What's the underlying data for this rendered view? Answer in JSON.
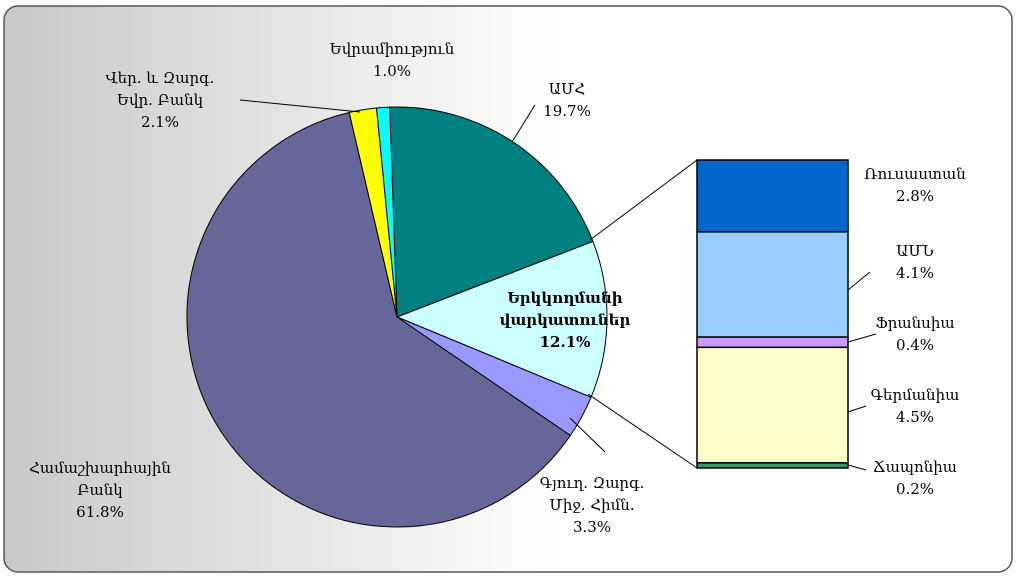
{
  "chart_data": [
    {
      "type": "pie",
      "categories": [
        "ԱՄՀ",
        "Երկկողմանի\nվարկատուներ",
        "Գյուղ. Զարգ.\nՄիջ. Հիմն.",
        "Համաշխարհային\nԲանկ",
        "Վեր. և Զարգ.\nԵվր. Բանկ",
        "Եվրամիություն"
      ],
      "values": [
        19.7,
        12.1,
        3.3,
        61.8,
        2.1,
        1.0
      ],
      "value_labels": [
        "19.7%",
        "12.1%",
        "3.3%",
        "61.8%",
        "2.1%",
        "1.0%"
      ],
      "colors": [
        "#008080",
        "#ccffff",
        "#9999ff",
        "#666699",
        "#ffff00",
        "#00ffff"
      ]
    },
    {
      "type": "bar",
      "categories": [
        "Ռուսաստան",
        "ԱՄՆ",
        "Ֆրանսիա",
        "Գերմանիա",
        "Ճապոնիա"
      ],
      "values": [
        2.8,
        4.1,
        0.4,
        4.5,
        0.2
      ],
      "value_labels": [
        "2.8%",
        "4.1%",
        "0.4%",
        "4.5%",
        "0.2%"
      ],
      "colors": [
        "#0066cc",
        "#99ccff",
        "#cc99ff",
        "#ffffcc",
        "#339966"
      ]
    }
  ]
}
